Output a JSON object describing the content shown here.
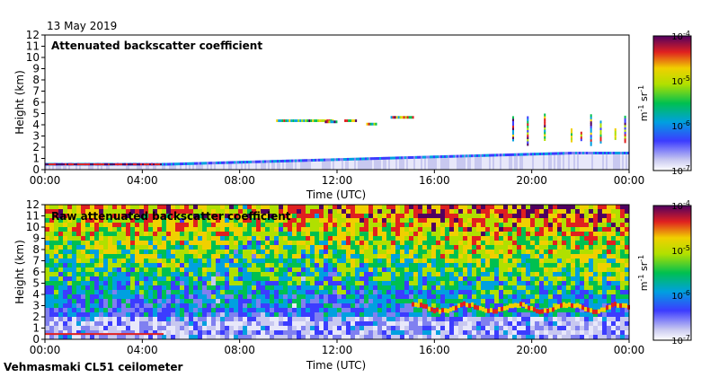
{
  "date": "13 May 2019",
  "footer": "Vehmasmaki CL51 ceilometer",
  "chart_data": [
    {
      "type": "heatmap",
      "title": "Attenuated backscatter coefficient",
      "xlabel": "Time (UTC)",
      "ylabel": "Height (km)",
      "x_ticks": [
        "00:00",
        "04:00",
        "08:00",
        "12:00",
        "16:00",
        "20:00",
        "00:00"
      ],
      "xlim": [
        0,
        24
      ],
      "ylim": [
        0,
        12
      ],
      "y_ticks": [
        0,
        1,
        2,
        3,
        4,
        5,
        6,
        7,
        8,
        9,
        10,
        11,
        12
      ],
      "colorbar": {
        "label": "m-1 sr-1",
        "scale": "log",
        "range": [
          1e-07,
          0.0001
        ],
        "ticks": [
          "10-7",
          "10-6",
          "10-5",
          "10-4"
        ]
      }
    },
    {
      "type": "heatmap",
      "title": "Raw attenuated backscatter coefficient",
      "xlabel": "Time (UTC)",
      "ylabel": "Height (km)",
      "x_ticks": [
        "00:00",
        "04:00",
        "08:00",
        "12:00",
        "16:00",
        "20:00",
        "00:00"
      ],
      "xlim": [
        0,
        24
      ],
      "ylim": [
        0,
        12
      ],
      "y_ticks": [
        0,
        1,
        2,
        3,
        4,
        5,
        6,
        7,
        8,
        9,
        10,
        11,
        12
      ],
      "colorbar": {
        "label": "m-1 sr-1",
        "scale": "log",
        "range": [
          1e-07,
          0.0001
        ],
        "ticks": [
          "10-7",
          "10-6",
          "10-5",
          "10-4"
        ]
      }
    }
  ]
}
